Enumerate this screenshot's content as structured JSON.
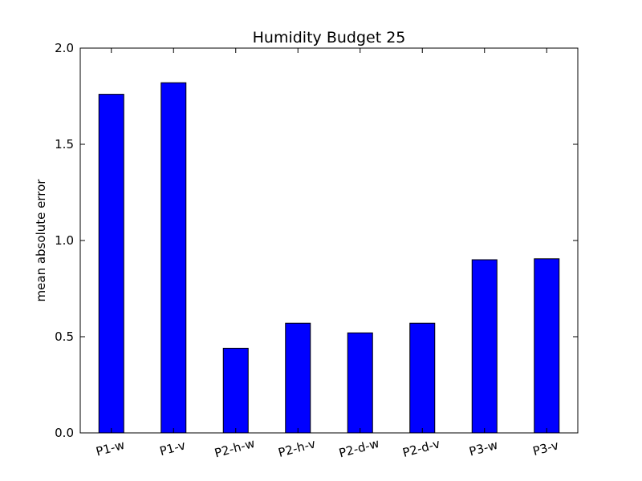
{
  "chart_data": {
    "type": "bar",
    "title": "Humidity Budget 25",
    "xlabel": "",
    "ylabel": "mean absolute error",
    "categories": [
      "P1-w",
      "P1-v",
      "P2-h-w",
      "P2-h-v",
      "P2-d-w",
      "P2-d-v",
      "P3-w",
      "P3-v"
    ],
    "values": [
      1.76,
      1.82,
      0.44,
      0.57,
      0.52,
      0.57,
      0.9,
      0.905
    ],
    "ylim": [
      0,
      2.0
    ],
    "yticks": [
      "0.0",
      "0.5",
      "1.0",
      "1.5",
      "2.0"
    ],
    "bar_color": "#0000ff",
    "grid": false,
    "legend": "none"
  }
}
